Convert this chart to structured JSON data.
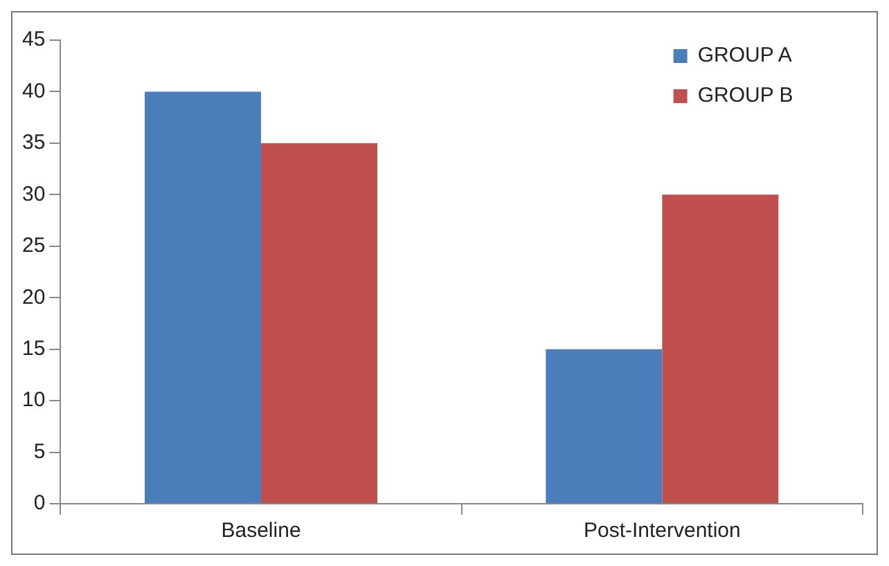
{
  "chart_data": {
    "type": "bar",
    "categories": [
      "Baseline",
      "Post-Intervention"
    ],
    "series": [
      {
        "name": "GROUP A",
        "color": "#4a7ebb",
        "values": [
          40,
          15
        ]
      },
      {
        "name": "GROUP B",
        "color": "#c0504d",
        "values": [
          35,
          30
        ]
      }
    ],
    "ylim": [
      0,
      45
    ],
    "yticks": [
      0,
      5,
      10,
      15,
      20,
      25,
      30,
      35,
      40,
      45
    ],
    "grid": false,
    "legend": "top right"
  }
}
